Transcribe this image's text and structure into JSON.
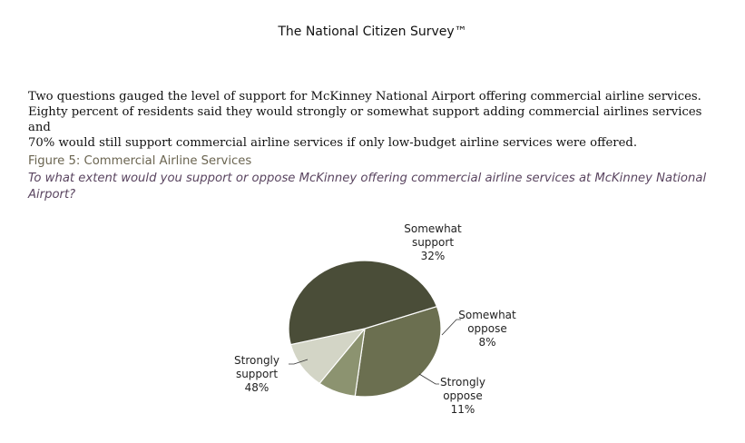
{
  "header": {
    "title": "The National Citizen Survey™"
  },
  "intro": {
    "line1": "Two questions gauged the level of support for McKinney National Airport offering commercial airline services.",
    "line2": "Eighty percent of residents said they would strongly or somewhat support adding commercial airlines services and",
    "line3": "70% would still support commercial airline services if only low-budget airline services were offered."
  },
  "figure": {
    "title": "Figure 5: Commercial Airline Services",
    "question_line1": "To what extent would you support or oppose McKinney offering commercial airline services at McKinney National",
    "question_line2": "Airport?"
  },
  "chart_data": {
    "type": "pie",
    "slices": [
      {
        "label_lines": [
          "Somewhat",
          "support"
        ],
        "value": 32,
        "pct": "32%",
        "color": "#6b6f50"
      },
      {
        "label_lines": [
          "Somewhat",
          "oppose"
        ],
        "value": 8,
        "pct": "8%",
        "color": "#8c9370"
      },
      {
        "label_lines": [
          "Strongly",
          "oppose"
        ],
        "value": 11,
        "pct": "11%",
        "color": "#d3d5c6"
      },
      {
        "label_lines": [
          "Strongly",
          "support"
        ],
        "value": 48,
        "pct": "48%",
        "color": "#4a4d38"
      }
    ],
    "start_angle_deg": -19,
    "title": "",
    "legend": "none"
  }
}
